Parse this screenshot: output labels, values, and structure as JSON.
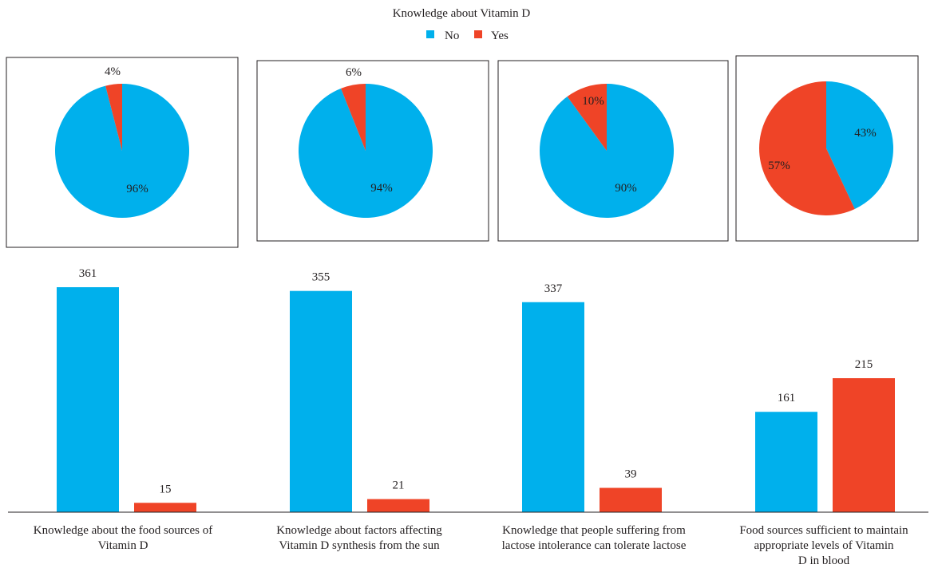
{
  "chart_data": {
    "type": "bar",
    "title": "Knowledge about Vitamin D",
    "legend": {
      "placement": "top-center",
      "items": [
        {
          "name": "No",
          "color": "#00b0ec"
        },
        {
          "name": "Yes",
          "color": "#ef4427"
        }
      ]
    },
    "categories": [
      [
        "Knowledge about the food sources of",
        "Vitamin D"
      ],
      [
        "Knowledge about factors affecting",
        "Vitamin D synthesis from the sun"
      ],
      [
        "Knowledge that people suffering from",
        "lactose intolerance can tolerate lactose"
      ],
      [
        "Food sources sufficient to maintain",
        "appropriate levels of Vitamin",
        "D in blood"
      ]
    ],
    "series": [
      {
        "name": "No",
        "color": "#00b0ec",
        "values": [
          361,
          355,
          337,
          161
        ],
        "labels": [
          "361",
          "355",
          "337",
          "161"
        ]
      },
      {
        "name": "Yes",
        "color": "#ef4427",
        "values": [
          15,
          21,
          39,
          215
        ],
        "labels": [
          "15",
          "21",
          "39",
          "215"
        ]
      }
    ],
    "ylim": [
      0,
      361
    ],
    "grid": false,
    "pies": [
      {
        "no": 96,
        "yes": 4,
        "no_label": "96%",
        "yes_label": "4%"
      },
      {
        "no": 94,
        "yes": 6,
        "no_label": "94%",
        "yes_label": "6%"
      },
      {
        "no": 90,
        "yes": 10,
        "no_label": "90%",
        "yes_label": "10%"
      },
      {
        "no": 43,
        "yes": 57,
        "no_label": "43%",
        "yes_label": "57%"
      }
    ]
  }
}
